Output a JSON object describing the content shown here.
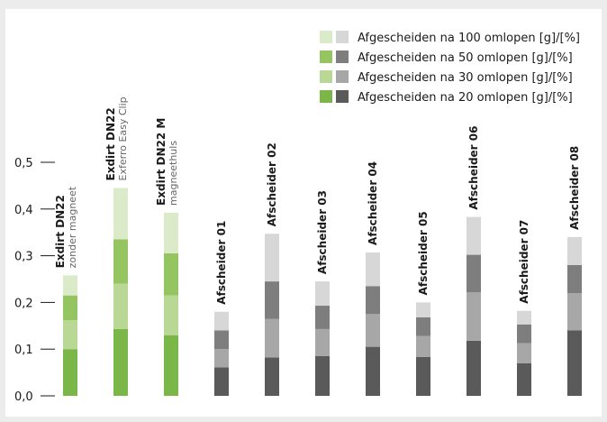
{
  "chart_data": {
    "type": "bar",
    "stacked": true,
    "ylim": [
      0,
      0.5
    ],
    "yticks": [
      "0,0",
      "0,1",
      "0,2",
      "0,3",
      "0,4",
      "0,5"
    ],
    "categories": [
      {
        "title": "Exdirt DN22",
        "subtitle": "zonder magneet",
        "group": "green"
      },
      {
        "title": "Exdirt DN22",
        "subtitle": "Exferro Easy Clip",
        "group": "green"
      },
      {
        "title": "Exdirt DN22 M",
        "subtitle": "magneethuls",
        "group": "green"
      },
      {
        "title": "Afscheider 01",
        "subtitle": "",
        "group": "gray"
      },
      {
        "title": "Afscheider 02",
        "subtitle": "",
        "group": "gray"
      },
      {
        "title": "Afscheider 03",
        "subtitle": "",
        "group": "gray"
      },
      {
        "title": "Afscheider 04",
        "subtitle": "",
        "group": "gray"
      },
      {
        "title": "Afscheider 05",
        "subtitle": "",
        "group": "gray"
      },
      {
        "title": "Afscheider 06",
        "subtitle": "",
        "group": "gray"
      },
      {
        "title": "Afscheider 07",
        "subtitle": "",
        "group": "gray"
      },
      {
        "title": "Afscheider 08",
        "subtitle": "",
        "group": "gray"
      }
    ],
    "series": [
      {
        "name": "Afgescheiden na 20 omlopen [g]/[%]",
        "values": [
          0.1,
          0.143,
          0.13,
          0.061,
          0.082,
          0.085,
          0.105,
          0.083,
          0.118,
          0.07,
          0.14
        ]
      },
      {
        "name": "Afgescheiden na 30 omlopen [g]/[%]",
        "values": [
          0.062,
          0.097,
          0.085,
          0.039,
          0.083,
          0.058,
          0.07,
          0.045,
          0.104,
          0.043,
          0.08
        ]
      },
      {
        "name": "Afgescheiden na 50 omlopen [g]/[%]",
        "values": [
          0.053,
          0.095,
          0.09,
          0.04,
          0.08,
          0.05,
          0.06,
          0.04,
          0.08,
          0.04,
          0.06
        ]
      },
      {
        "name": "Afgescheiden na 100 omlopen [g]/[%]",
        "values": [
          0.043,
          0.11,
          0.087,
          0.04,
          0.102,
          0.052,
          0.072,
          0.032,
          0.081,
          0.029,
          0.06
        ]
      }
    ],
    "colors": {
      "green": [
        "#7ab648",
        "#b9d895",
        "#95c561",
        "#dbebc9"
      ],
      "gray": [
        "#5a5a5a",
        "#a7a7a7",
        "#7e7e7e",
        "#d7d7d7"
      ],
      "axis": "#1a1a1a"
    },
    "legend": {
      "placement": "top-right",
      "order": [
        3,
        2,
        1,
        0
      ]
    }
  }
}
